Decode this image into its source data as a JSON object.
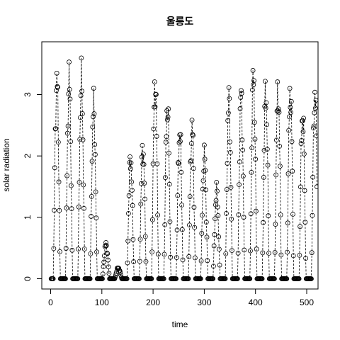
{
  "chart_data": {
    "type": "line",
    "title": "울릉도",
    "xlabel": "time",
    "ylabel": "solar radiation",
    "xlim": [
      -20,
      520
    ],
    "ylim": [
      -0.1,
      3.9
    ],
    "x_ticks": [
      0,
      100,
      200,
      300,
      400,
      500
    ],
    "y_ticks": [
      0,
      1,
      2,
      3
    ],
    "line_style": "dashed",
    "marker": "open-circle",
    "grid": false,
    "legend": "none",
    "colors": {
      "line": "#000000",
      "marker": "#000000",
      "background": "#ffffff"
    },
    "daily_peaks": [
      3.66,
      3.63,
      3.6,
      3.15,
      0.63,
      0.2,
      2.22,
      2.42,
      3.63,
      3.2,
      2.7,
      2.78,
      2.24,
      1.6,
      3.25,
      3.37,
      3.7,
      3.43,
      3.45,
      3.47,
      3.06,
      3.43
    ],
    "day_length": 24,
    "daylight_hours": 13,
    "first_sunrise": 5
  }
}
